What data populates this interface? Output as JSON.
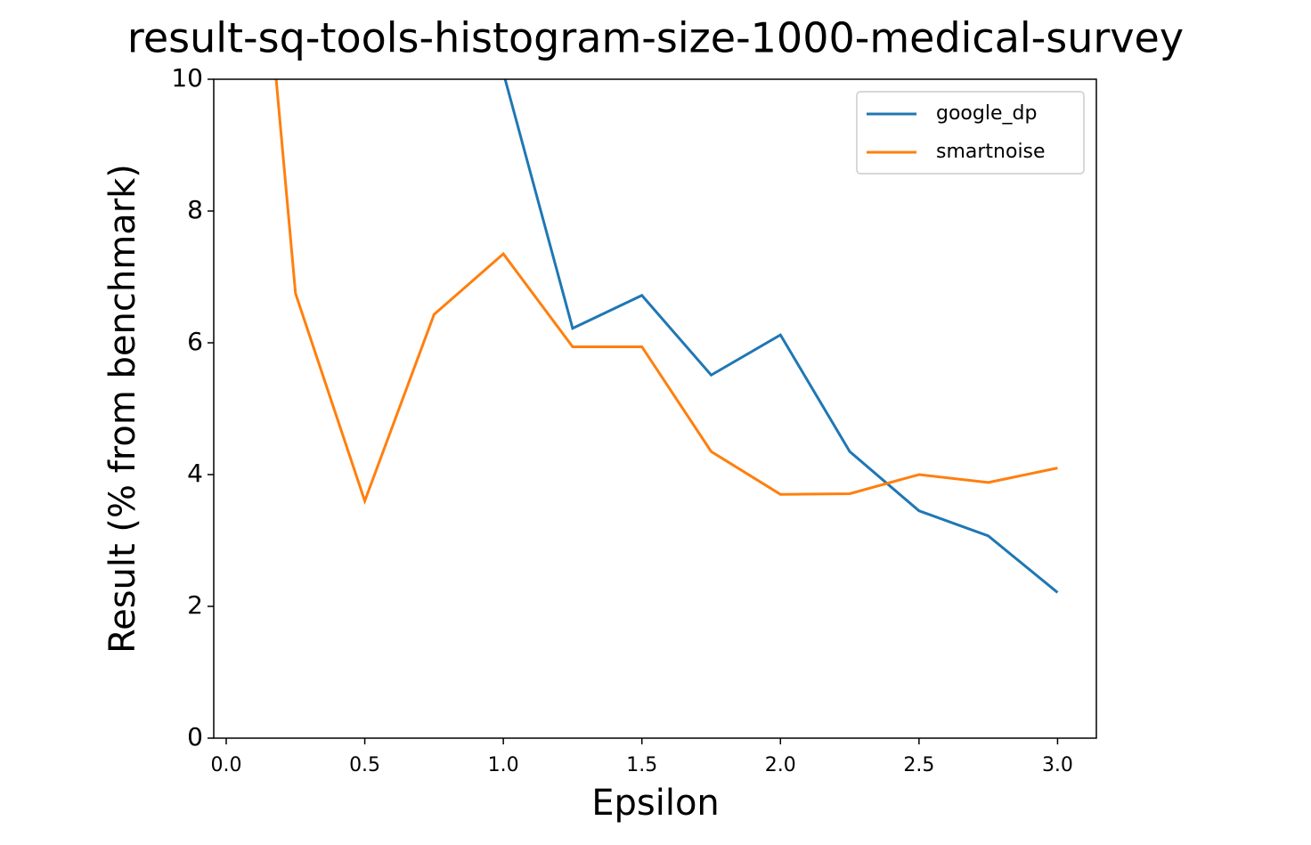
{
  "chart_data": {
    "type": "line",
    "title": "result-sq-tools-histogram-size-1000-medical-survey",
    "x_label": "Epsilon",
    "y_label": "Result (% from benchmark)",
    "x": [
      0,
      0.25,
      0.5,
      0.75,
      1,
      1.25,
      1.5,
      1.75,
      2,
      2.25,
      2.5,
      2.75,
      3
    ],
    "series": [
      {
        "name": "google_dp",
        "color": "#1f77b4",
        "values": [
          null,
          null,
          null,
          null,
          10.1,
          6.22,
          6.72,
          5.51,
          6.12,
          4.35,
          3.45,
          3.07,
          2.21
        ]
      },
      {
        "name": "smartnoise",
        "color": "#ff7f0e",
        "values": [
          18.4,
          6.75,
          3.6,
          6.43,
          7.35,
          5.94,
          5.94,
          4.35,
          3.7,
          3.71,
          4.0,
          3.88,
          4.1
        ]
      }
    ],
    "xlim": [
      -0.045,
      3.14
    ],
    "ylim": [
      0,
      10
    ],
    "xticks": [
      {
        "value": 0,
        "label": "0.0"
      },
      {
        "value": 0.5,
        "label": "0.5"
      },
      {
        "value": 1,
        "label": "1.0"
      },
      {
        "value": 1.5,
        "label": "1.5"
      },
      {
        "value": 2,
        "label": "2.0"
      },
      {
        "value": 2.5,
        "label": "2.5"
      },
      {
        "value": 3,
        "label": "3.0"
      }
    ],
    "yticks": [
      0,
      2,
      4,
      6,
      8,
      10
    ],
    "grid": false,
    "legend": "upper-right"
  }
}
